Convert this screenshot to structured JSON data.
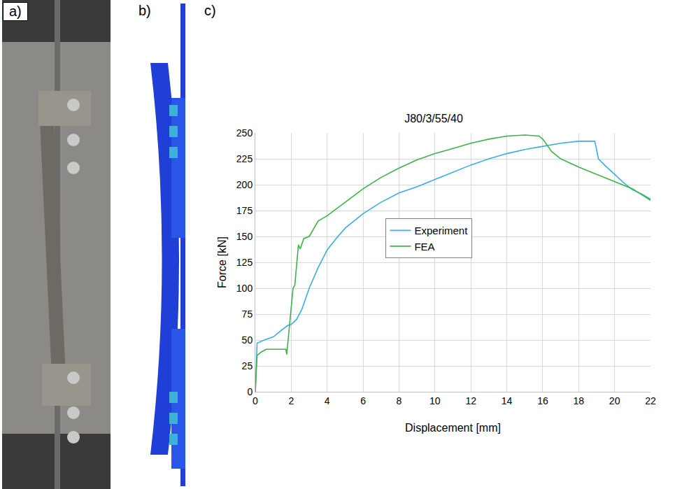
{
  "panel_labels": [
    "a)",
    "b)",
    "c)"
  ],
  "chart_data": {
    "type": "line",
    "title": "J80/3/55/40",
    "x_label": "Displacement [mm]",
    "y_label": "Force [kN]",
    "xlim": [
      0,
      22
    ],
    "xticks": [
      0,
      2,
      4,
      6,
      8,
      10,
      12,
      14,
      16,
      18,
      20,
      22
    ],
    "ylim": [
      0,
      250
    ],
    "yticks": [
      0,
      25,
      50,
      75,
      100,
      125,
      150,
      175,
      200,
      225,
      250
    ],
    "grid": true,
    "legend": "center",
    "series": [
      {
        "name": "Experiment",
        "color": "#3aaee0",
        "x": [
          0,
          0.1,
          0.5,
          1,
          1.5,
          1.8,
          2,
          2.3,
          2.6,
          3,
          3.5,
          4,
          4.5,
          5,
          6,
          7,
          8,
          9,
          10,
          11,
          12,
          13,
          14,
          15,
          16,
          17,
          18,
          18.9,
          19.1,
          19.5,
          20,
          20.5,
          21,
          21.5,
          22
        ],
        "values": [
          0,
          47,
          50,
          53,
          60,
          64,
          65,
          70,
          80,
          100,
          120,
          137,
          148,
          158,
          172,
          183,
          192,
          198,
          205,
          212,
          219,
          225,
          230,
          234,
          237,
          240,
          242,
          242,
          225,
          218,
          210,
          202,
          195,
          191,
          186
        ]
      },
      {
        "name": "FEA",
        "color": "#3db34a",
        "x": [
          0,
          0.1,
          0.3,
          0.6,
          1,
          1.5,
          1.7,
          1.75,
          1.9,
          2.1,
          2.2,
          2.4,
          2.5,
          2.7,
          3,
          3.5,
          4,
          5,
          6,
          7,
          8,
          9,
          10,
          11,
          12,
          13,
          14,
          15,
          15.8,
          16,
          16.5,
          17,
          18,
          19,
          20,
          21,
          22
        ],
        "values": [
          0,
          35,
          38,
          41,
          41,
          41,
          41,
          36,
          65,
          100,
          103,
          142,
          138,
          148,
          150,
          165,
          170,
          183,
          196,
          207,
          216,
          224,
          230,
          235,
          240,
          244,
          247,
          248,
          247,
          244,
          232,
          225,
          217,
          210,
          203,
          196,
          185
        ]
      }
    ]
  }
}
